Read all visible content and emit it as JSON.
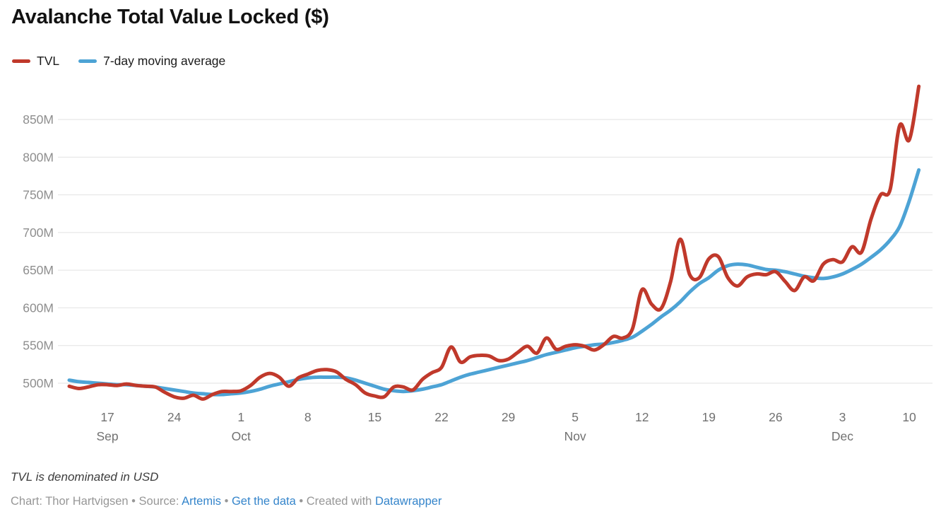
{
  "header": {
    "title": "Avalanche Total Value Locked ($)"
  },
  "footer": {
    "notes": "TVL is denominated in USD",
    "byline": {
      "prefix": "Chart: Thor Hartvigsen • Source: ",
      "source_link": "Artemis",
      "sep1": " • ",
      "data_link": "Get the data",
      "sep2": " • Created with ",
      "tool_link": "Datawrapper"
    }
  },
  "colors": {
    "tvl_red": "#c0392b",
    "ma_blue": "#4da3d5",
    "grid": "#e2e2e2",
    "y_label": "#8e8e8e",
    "x_label": "#717171",
    "link_blue": "#3585cb"
  },
  "chart_data": {
    "type": "line",
    "title": "Avalanche Total Value Locked ($)",
    "ylabel_format": "M",
    "grid": true,
    "legend_position": "top-left",
    "ylim": [
      470,
      900
    ],
    "y_ticks": [
      500,
      550,
      600,
      650,
      700,
      750,
      800,
      850
    ],
    "x_ticks": [
      {
        "i": 4,
        "label": "17",
        "month": "Sep"
      },
      {
        "i": 11,
        "label": "24"
      },
      {
        "i": 18,
        "label": "1",
        "month": "Oct"
      },
      {
        "i": 25,
        "label": "8"
      },
      {
        "i": 32,
        "label": "15"
      },
      {
        "i": 39,
        "label": "22"
      },
      {
        "i": 46,
        "label": "29"
      },
      {
        "i": 53,
        "label": "5",
        "month": "Nov"
      },
      {
        "i": 60,
        "label": "12"
      },
      {
        "i": 67,
        "label": "19"
      },
      {
        "i": 74,
        "label": "26"
      },
      {
        "i": 81,
        "label": "3",
        "month": "Dec"
      },
      {
        "i": 88,
        "label": "10"
      }
    ],
    "x": [
      "Sep 13",
      "Sep 14",
      "Sep 15",
      "Sep 16",
      "Sep 17",
      "Sep 18",
      "Sep 19",
      "Sep 20",
      "Sep 21",
      "Sep 22",
      "Sep 23",
      "Sep 24",
      "Sep 25",
      "Sep 26",
      "Sep 27",
      "Sep 28",
      "Sep 29",
      "Sep 30",
      "Oct 1",
      "Oct 2",
      "Oct 3",
      "Oct 4",
      "Oct 5",
      "Oct 6",
      "Oct 7",
      "Oct 8",
      "Oct 9",
      "Oct 10",
      "Oct 11",
      "Oct 12",
      "Oct 13",
      "Oct 14",
      "Oct 15",
      "Oct 16",
      "Oct 17",
      "Oct 18",
      "Oct 19",
      "Oct 20",
      "Oct 21",
      "Oct 22",
      "Oct 23",
      "Oct 24",
      "Oct 25",
      "Oct 26",
      "Oct 27",
      "Oct 28",
      "Oct 29",
      "Oct 30",
      "Oct 31",
      "Nov 1",
      "Nov 2",
      "Nov 3",
      "Nov 4",
      "Nov 5",
      "Nov 6",
      "Nov 7",
      "Nov 8",
      "Nov 9",
      "Nov 10",
      "Nov 11",
      "Nov 12",
      "Nov 13",
      "Nov 14",
      "Nov 15",
      "Nov 16",
      "Nov 17",
      "Nov 18",
      "Nov 19",
      "Nov 20",
      "Nov 21",
      "Nov 22",
      "Nov 23",
      "Nov 24",
      "Nov 25",
      "Nov 26",
      "Nov 27",
      "Nov 28",
      "Nov 29",
      "Nov 30",
      "Dec 1",
      "Dec 2",
      "Dec 3",
      "Dec 4",
      "Dec 5",
      "Dec 6",
      "Dec 7",
      "Dec 8",
      "Dec 9",
      "Dec 10",
      "Dec 11"
    ],
    "series": [
      {
        "name": "TVL",
        "color": "#c0392b",
        "values": [
          496,
          493,
          495,
          498,
          498,
          497,
          499,
          497,
          496,
          495,
          488,
          482,
          480,
          484,
          479,
          485,
          489,
          489,
          490,
          497,
          508,
          513,
          508,
          496,
          507,
          512,
          517,
          518,
          515,
          505,
          498,
          487,
          483,
          482,
          495,
          495,
          491,
          505,
          514,
          521,
          548,
          528,
          535,
          537,
          536,
          530,
          532,
          541,
          549,
          540,
          560,
          545,
          549,
          551,
          549,
          544,
          551,
          562,
          560,
          572,
          624,
          605,
          599,
          635,
          691,
          644,
          640,
          665,
          668,
          640,
          629,
          641,
          645,
          644,
          648,
          635,
          623,
          641,
          636,
          658,
          664,
          661,
          681,
          674,
          718,
          750,
          757,
          842,
          823,
          894
        ]
      },
      {
        "name": "7-day moving average",
        "color": "#4da3d5",
        "values": [
          504,
          502,
          501,
          500,
          499,
          498,
          498,
          497,
          496,
          495,
          493,
          491,
          489,
          487,
          486,
          485,
          485,
          486,
          487,
          489,
          492,
          496,
          499,
          502,
          505,
          507,
          508,
          508,
          508,
          507,
          504,
          500,
          496,
          492,
          490,
          489,
          490,
          492,
          495,
          498,
          503,
          508,
          512,
          515,
          518,
          521,
          524,
          527,
          530,
          534,
          538,
          541,
          544,
          547,
          549,
          551,
          552,
          554,
          557,
          561,
          569,
          578,
          588,
          597,
          608,
          621,
          632,
          640,
          650,
          656,
          658,
          657,
          654,
          651,
          650,
          648,
          645,
          642,
          640,
          639,
          641,
          645,
          651,
          658,
          667,
          677,
          690,
          708,
          742,
          783
        ]
      }
    ]
  }
}
